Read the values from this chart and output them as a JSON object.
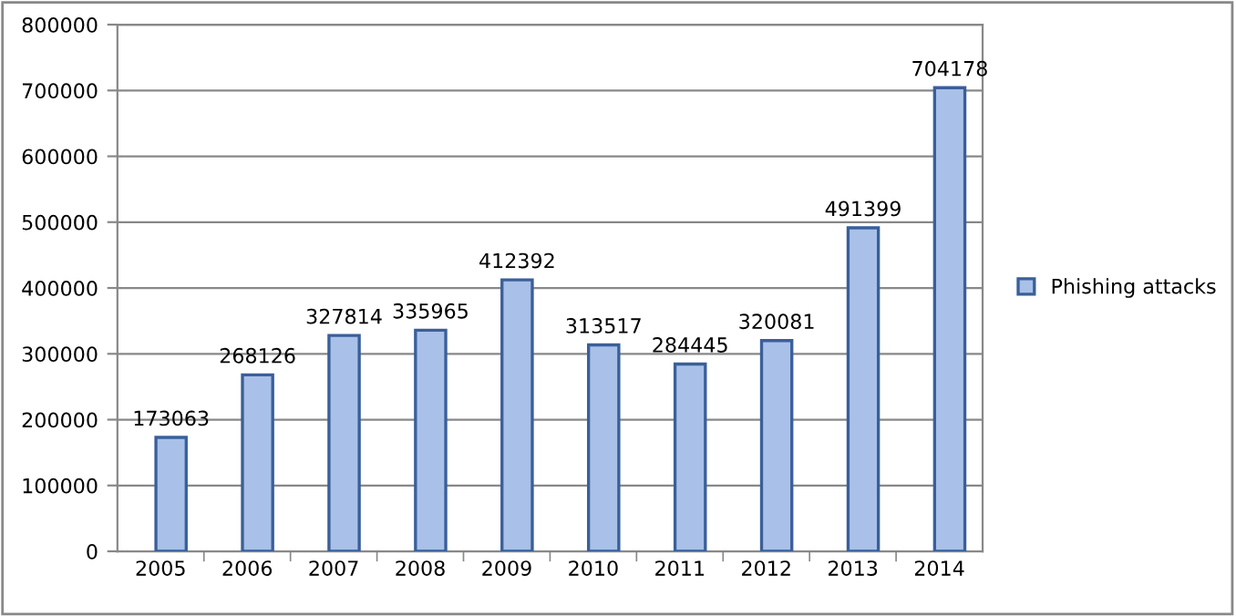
{
  "chart_data": {
    "type": "bar",
    "categories": [
      "2005",
      "2006",
      "2007",
      "2008",
      "2009",
      "2010",
      "2011",
      "2012",
      "2013",
      "2014"
    ],
    "series": [
      {
        "name": "Phishing attacks",
        "color": "#a9c1e8",
        "values": [
          173063,
          268126,
          327814,
          335965,
          412392,
          313517,
          284445,
          320081,
          491399,
          704178
        ]
      }
    ],
    "ylim": [
      0,
      800000
    ],
    "yticks": [
      0,
      100000,
      200000,
      300000,
      400000,
      500000,
      600000,
      700000,
      800000
    ],
    "grid": "y",
    "legend": "right",
    "data_labels": true
  }
}
